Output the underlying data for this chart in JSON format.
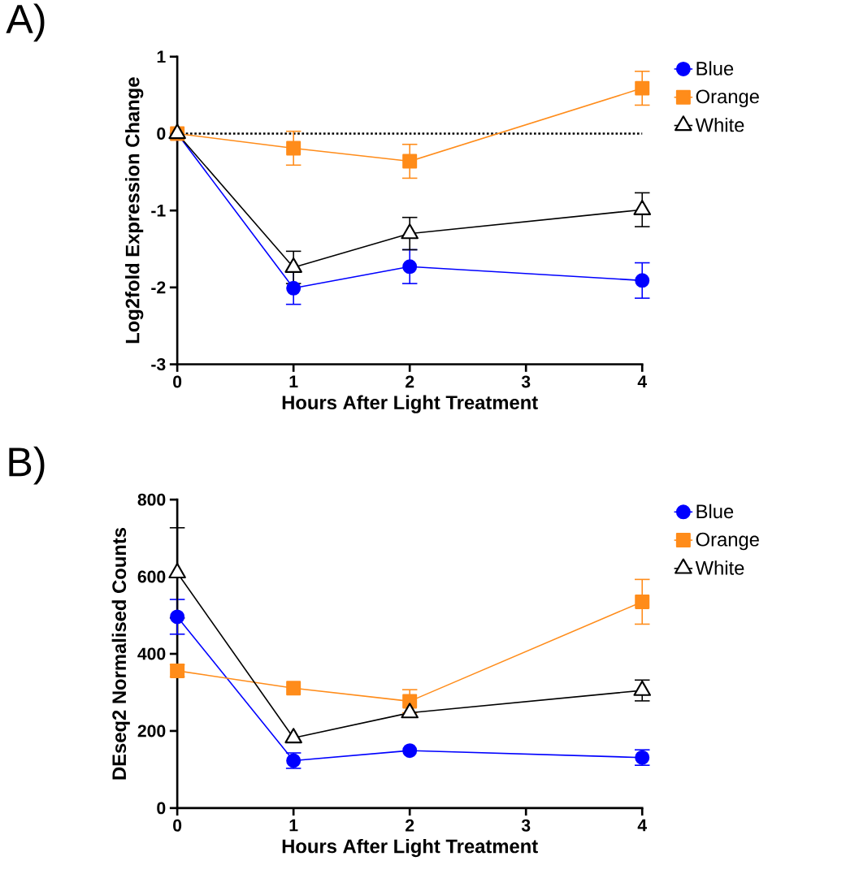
{
  "chart_data": [
    {
      "type": "line",
      "title": "A)",
      "xlabel": "Hours After Light Treatment",
      "ylabel": "Log2fold Expression Change",
      "x": [
        0,
        1,
        2,
        4
      ],
      "xlim": [
        0,
        4
      ],
      "xticks": [
        0,
        1,
        2,
        3,
        4
      ],
      "ylim": [
        -3,
        1
      ],
      "yticks": [
        -3,
        -2,
        -1,
        0,
        1
      ],
      "legend": "right",
      "grid": false,
      "ref_lines": [
        {
          "axis": "y",
          "value": 0,
          "line_style": "dotted",
          "color": "#000000"
        }
      ],
      "series": [
        {
          "name": "Blue",
          "color": "#0000ff",
          "marker": "circle",
          "values": [
            0,
            -2.01,
            -1.73,
            -1.91
          ],
          "errors": [
            null,
            0.21,
            0.22,
            0.23
          ]
        },
        {
          "name": "Orange",
          "color": "#ff8c1a",
          "marker": "square",
          "values": [
            0,
            -0.19,
            -0.36,
            0.59
          ],
          "errors": [
            null,
            0.22,
            0.22,
            0.22
          ]
        },
        {
          "name": "White",
          "color": "#000000",
          "marker": "triangle",
          "values": [
            0,
            -1.74,
            -1.3,
            -0.99
          ],
          "errors": [
            null,
            0.21,
            0.21,
            0.22
          ]
        }
      ]
    },
    {
      "type": "line",
      "title": "B)",
      "xlabel": "Hours After Light Treatment",
      "ylabel": "DEseq2 Normalised Counts",
      "x": [
        0,
        1,
        2,
        4
      ],
      "xlim": [
        0,
        4
      ],
      "xticks": [
        0,
        1,
        2,
        3,
        4
      ],
      "ylim": [
        0,
        800
      ],
      "yticks": [
        0,
        200,
        400,
        600,
        800
      ],
      "legend": "right",
      "grid": false,
      "series": [
        {
          "name": "Blue",
          "color": "#0000ff",
          "marker": "circle",
          "values": [
            496,
            123,
            149,
            131
          ],
          "errors": [
            45,
            20,
            null,
            20
          ]
        },
        {
          "name": "Orange",
          "color": "#ff8c1a",
          "marker": "square",
          "values": [
            356,
            311,
            277,
            535
          ],
          "errors": [
            16,
            null,
            30,
            58
          ]
        },
        {
          "name": "White",
          "color": "#000000",
          "marker": "triangle",
          "values": [
            610,
            182,
            247,
            305
          ],
          "errors": [
            117,
            null,
            null,
            27
          ]
        }
      ]
    }
  ]
}
